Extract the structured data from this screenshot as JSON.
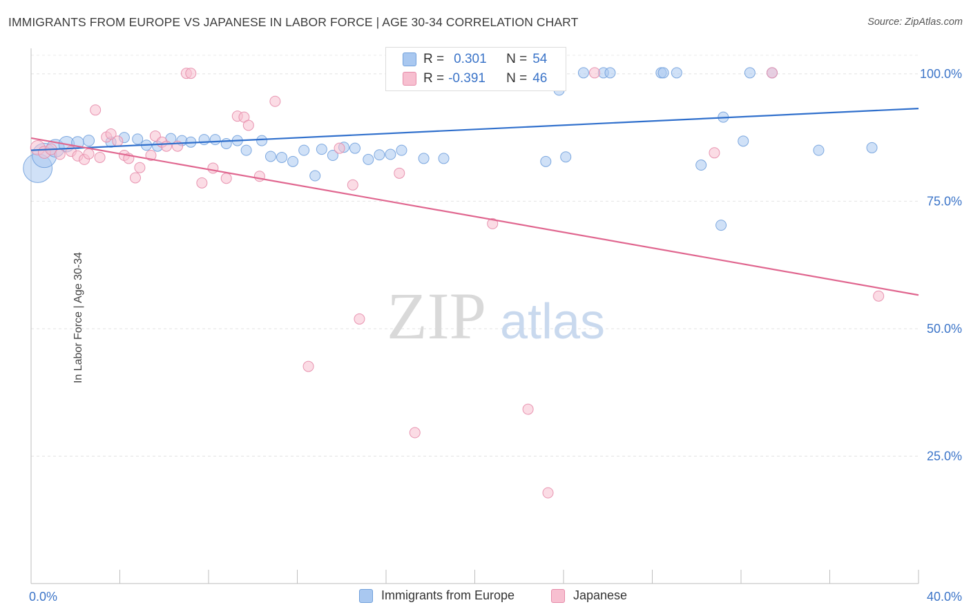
{
  "title": "IMMIGRANTS FROM EUROPE VS JAPANESE IN LABOR FORCE | AGE 30-34 CORRELATION CHART",
  "source": "Source: ZipAtlas.com",
  "watermark": {
    "zip": "ZIP",
    "atlas": "atlas"
  },
  "legend": {
    "r_label": "R =",
    "n_label": "N =",
    "rows": [
      {
        "r": "0.301",
        "n": "54",
        "color": "#a9c8f0",
        "border": "#6f9fdb"
      },
      {
        "r": "-0.391",
        "n": "46",
        "color": "#f7bfd0",
        "border": "#e68aa8"
      }
    ]
  },
  "chart_data": {
    "type": "scatter",
    "xlabel": "",
    "ylabel": "In Labor Force | Age 30-34",
    "xlim": [
      0,
      40
    ],
    "ylim": [
      0,
      105
    ],
    "x_tick_labels": [
      "0.0%",
      "40.0%"
    ],
    "y_ticks": [
      25,
      50,
      75,
      100
    ],
    "y_tick_labels": [
      "25.0%",
      "50.0%",
      "75.0%",
      "100.0%"
    ],
    "grid": true,
    "legend_position": "bottom",
    "series": [
      {
        "name": "Immigrants from Europe",
        "color": "#a9c8f0",
        "stroke": "#6f9fdb",
        "line_color": "#2f6fcc",
        "trend": {
          "x0": 0,
          "y0": 85.0,
          "x1": 40,
          "y1": 93.2
        },
        "points": [
          [
            0.3,
            81.5,
            2.6
          ],
          [
            0.6,
            84.0,
            2.2
          ],
          [
            1.1,
            85.4,
            1.6
          ],
          [
            1.6,
            86.2,
            1.4
          ],
          [
            2.1,
            86.5,
            1.1
          ],
          [
            2.6,
            86.9,
            1.0
          ],
          [
            3.6,
            86.6,
            0.9
          ],
          [
            4.2,
            87.5,
            0.8
          ],
          [
            4.8,
            87.2,
            0.8
          ],
          [
            5.2,
            86.0,
            0.8
          ],
          [
            5.7,
            85.8,
            0.7
          ],
          [
            6.3,
            87.3,
            0.8
          ],
          [
            6.8,
            86.9,
            0.7
          ],
          [
            7.2,
            86.6,
            0.7
          ],
          [
            7.8,
            87.1,
            0.8
          ],
          [
            8.3,
            87.1,
            0.8
          ],
          [
            8.8,
            86.3,
            0.7
          ],
          [
            9.3,
            86.9,
            0.8
          ],
          [
            9.7,
            85.0,
            0.7
          ],
          [
            10.4,
            86.9,
            0.8
          ],
          [
            10.8,
            83.8,
            0.7
          ],
          [
            11.3,
            83.6,
            0.7
          ],
          [
            11.8,
            82.8,
            0.7
          ],
          [
            12.3,
            85.0,
            0.7
          ],
          [
            12.8,
            80.0,
            0.7
          ],
          [
            13.1,
            85.2,
            0.7
          ],
          [
            13.6,
            84.0,
            0.7
          ],
          [
            14.1,
            85.6,
            0.7
          ],
          [
            14.6,
            85.4,
            0.7
          ],
          [
            15.2,
            83.2,
            0.7
          ],
          [
            15.7,
            84.1,
            0.7
          ],
          [
            16.2,
            84.2,
            0.7
          ],
          [
            16.7,
            85.0,
            0.7
          ],
          [
            17.7,
            83.4,
            0.7
          ],
          [
            18.6,
            83.4,
            0.7
          ],
          [
            20.3,
            100.2,
            0.8
          ],
          [
            21.2,
            100.2,
            0.8
          ],
          [
            23.2,
            82.8,
            0.7
          ],
          [
            24.1,
            83.7,
            0.7
          ],
          [
            25.8,
            100.2,
            0.8
          ],
          [
            24.9,
            100.2,
            0.8
          ],
          [
            23.8,
            96.8,
            0.7
          ],
          [
            26.1,
            100.2,
            0.8
          ],
          [
            28.4,
            100.2,
            0.8
          ],
          [
            29.1,
            100.2,
            0.8
          ],
          [
            30.2,
            82.1,
            0.7
          ],
          [
            31.2,
            91.5,
            0.7
          ],
          [
            32.1,
            86.8,
            0.7
          ],
          [
            32.4,
            100.2,
            0.8
          ],
          [
            33.4,
            100.2,
            0.8
          ],
          [
            35.5,
            85.0,
            0.7
          ],
          [
            37.9,
            85.5,
            0.7
          ],
          [
            28.5,
            100.2,
            0.8
          ],
          [
            31.1,
            70.3,
            0.7
          ]
        ]
      },
      {
        "name": "Japanese",
        "color": "#f7bfd0",
        "stroke": "#e68aa8",
        "line_color": "#e0668f",
        "trend": {
          "x0": 0,
          "y0": 87.4,
          "x1": 40,
          "y1": 56.6
        },
        "points": [
          [
            0.3,
            85.5,
            1.3
          ],
          [
            0.6,
            84.6,
            1.1
          ],
          [
            0.9,
            85.2,
            1.0
          ],
          [
            1.3,
            84.2,
            0.9
          ],
          [
            1.8,
            84.8,
            0.9
          ],
          [
            2.1,
            83.9,
            0.8
          ],
          [
            2.4,
            83.2,
            0.8
          ],
          [
            2.6,
            84.3,
            0.8
          ],
          [
            2.9,
            92.9,
            0.8
          ],
          [
            3.1,
            83.6,
            0.8
          ],
          [
            3.4,
            87.6,
            0.8
          ],
          [
            3.6,
            88.2,
            0.8
          ],
          [
            3.9,
            86.8,
            0.8
          ],
          [
            4.2,
            84.0,
            0.8
          ],
          [
            4.4,
            83.4,
            0.8
          ],
          [
            4.7,
            79.6,
            0.8
          ],
          [
            4.9,
            81.6,
            0.8
          ],
          [
            5.4,
            84.0,
            0.8
          ],
          [
            5.6,
            87.8,
            0.8
          ],
          [
            5.9,
            86.6,
            0.8
          ],
          [
            6.1,
            85.8,
            0.8
          ],
          [
            6.6,
            85.8,
            0.8
          ],
          [
            7.0,
            100.1,
            0.8
          ],
          [
            7.2,
            100.1,
            0.8
          ],
          [
            7.7,
            78.6,
            0.8
          ],
          [
            8.2,
            81.5,
            0.8
          ],
          [
            8.8,
            79.5,
            0.8
          ],
          [
            9.3,
            91.7,
            0.8
          ],
          [
            9.6,
            91.5,
            0.8
          ],
          [
            9.8,
            89.9,
            0.8
          ],
          [
            10.3,
            79.9,
            0.8
          ],
          [
            11.0,
            94.6,
            0.8
          ],
          [
            12.5,
            42.6,
            0.8
          ],
          [
            13.9,
            85.4,
            0.8
          ],
          [
            14.5,
            78.2,
            0.8
          ],
          [
            14.8,
            51.9,
            0.8
          ],
          [
            16.6,
            80.5,
            0.8
          ],
          [
            17.3,
            29.6,
            0.8
          ],
          [
            20.8,
            70.6,
            0.8
          ],
          [
            22.4,
            34.2,
            0.8
          ],
          [
            23.3,
            17.8,
            0.8
          ],
          [
            25.4,
            100.2,
            0.8
          ],
          [
            30.8,
            84.5,
            0.8
          ],
          [
            33.4,
            100.2,
            0.8
          ],
          [
            38.2,
            56.4,
            0.8
          ],
          [
            23.0,
            100.2,
            0.8
          ]
        ]
      }
    ]
  }
}
